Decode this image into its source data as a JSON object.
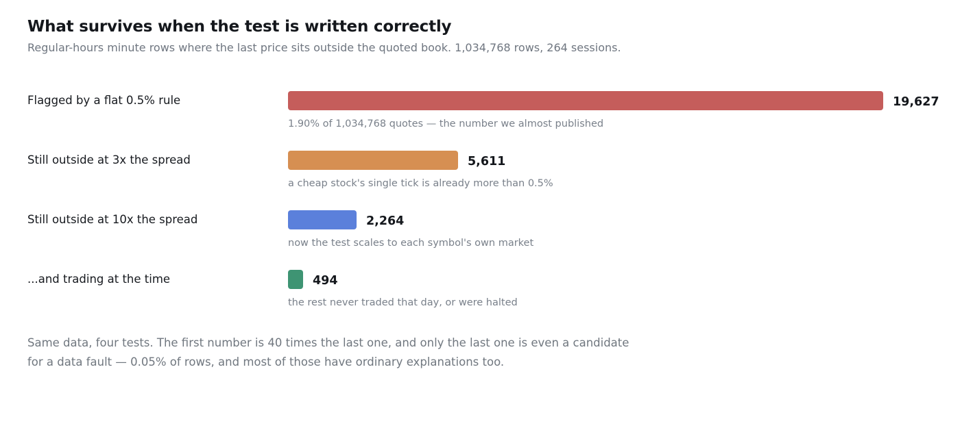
{
  "header": {
    "title": "What survives when the test is written correctly",
    "subtitle": "Regular-hours minute rows where the last price sits outside the quoted book. 1,034,768 rows, 264 sessions."
  },
  "colors": {
    "flat_rule": "#c55d5b",
    "spread_3x": "#d68f52",
    "spread_10x": "#5b80db",
    "trading": "#3e9473"
  },
  "chart_data": {
    "type": "bar",
    "orientation": "horizontal",
    "title": "What survives when the test is written correctly",
    "subtitle": "Regular-hours minute rows where the last price sits outside the quoted book. 1,034,768 rows, 264 sessions.",
    "categories": [
      "Flagged by a flat 0.5% rule",
      "Still outside at 3x the spread",
      "Still outside at 10x the spread",
      "...and trading at the time"
    ],
    "values": [
      19627,
      5611,
      2264,
      494
    ],
    "value_labels": [
      "19,627",
      "5,611",
      "2,264",
      "494"
    ],
    "annotations": [
      "1.90% of 1,034,768 quotes — the number we almost published",
      "a cheap stock's single tick is already more than 0.5%",
      "now the test scales to each symbol's own market",
      "the rest never traded that day, or were halted"
    ],
    "xlim": [
      0,
      19627
    ],
    "grid": false,
    "legend": "none"
  },
  "footer": {
    "line1": "Same data, four tests. The first number is 40 times the last one, and only the last one is even a candidate",
    "line2": "for a data fault — 0.05% of rows, and most of those have ordinary explanations too."
  }
}
